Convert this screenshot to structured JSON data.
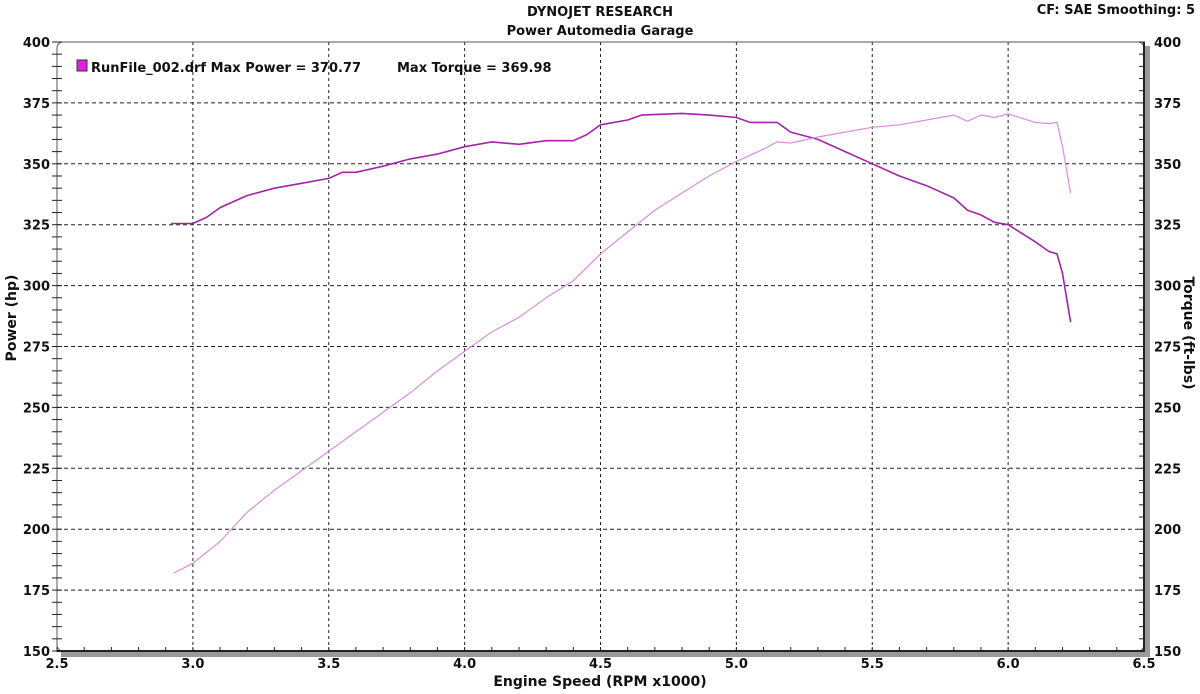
{
  "header": {
    "title": "DYNOJET RESEARCH",
    "subtitle": "Power Automedia Garage",
    "settings": "CF: SAE  Smoothing: 5"
  },
  "legend": {
    "run_label": "RunFile_002.drf Max Power = 370.77",
    "torque_label": "Max Torque = 369.98",
    "swatch_color": "#e020e0"
  },
  "chart_data": {
    "type": "line",
    "xlabel": "Engine Speed (RPM x1000)",
    "ylabel": "Power (hp)",
    "y2label": "Torque (ft-lbs)",
    "xlim": [
      2.5,
      6.5
    ],
    "ylim": [
      150,
      400
    ],
    "y2lim": [
      150,
      400
    ],
    "xticks": [
      "2.5",
      "3.0",
      "3.5",
      "4.0",
      "4.5",
      "5.0",
      "5.5",
      "6.0",
      "6.5"
    ],
    "yticks": [
      "150",
      "175",
      "200",
      "225",
      "250",
      "275",
      "300",
      "325",
      "350",
      "375",
      "400"
    ],
    "grid": true,
    "legend_position": "top-left",
    "series": [
      {
        "id": "power",
        "color": "#a424a8",
        "x": [
          2.92,
          3.0,
          3.05,
          3.1,
          3.2,
          3.3,
          3.4,
          3.5,
          3.55,
          3.6,
          3.7,
          3.8,
          3.9,
          4.0,
          4.1,
          4.2,
          4.3,
          4.4,
          4.45,
          4.5,
          4.6,
          4.65,
          4.8,
          4.9,
          5.0,
          5.05,
          5.15,
          5.2,
          5.3,
          5.4,
          5.5,
          5.6,
          5.7,
          5.8,
          5.85,
          5.9,
          5.95,
          6.0,
          6.1,
          6.15,
          6.18,
          6.2,
          6.23
        ],
        "y": [
          325.5,
          325.5,
          328,
          332,
          337,
          340,
          342,
          344,
          346.5,
          346.5,
          349,
          352,
          354,
          357,
          359,
          358,
          359.5,
          359.5,
          362,
          366,
          368,
          370,
          370.7,
          370,
          369,
          367,
          367,
          363,
          360,
          355,
          350,
          345,
          341,
          336,
          331,
          329,
          326,
          325,
          318,
          314,
          313,
          305,
          285
        ]
      },
      {
        "id": "torque",
        "color": "#d98ee0",
        "x": [
          2.93,
          3.0,
          3.1,
          3.2,
          3.3,
          3.4,
          3.5,
          3.6,
          3.7,
          3.8,
          3.9,
          4.0,
          4.1,
          4.2,
          4.3,
          4.4,
          4.5,
          4.6,
          4.7,
          4.8,
          4.9,
          5.0,
          5.1,
          5.15,
          5.2,
          5.3,
          5.4,
          5.5,
          5.6,
          5.7,
          5.8,
          5.85,
          5.9,
          5.95,
          6.0,
          6.1,
          6.15,
          6.18,
          6.2,
          6.23
        ],
        "y": [
          182,
          186,
          195,
          207,
          216,
          224,
          232,
          240,
          248,
          256,
          265,
          273,
          281,
          287,
          295,
          302,
          313,
          322,
          331,
          338,
          345,
          351,
          356,
          359,
          358.5,
          361,
          363,
          365,
          366,
          368,
          370,
          367.5,
          370,
          369,
          370.5,
          367,
          366.5,
          367,
          357,
          338
        ]
      }
    ]
  }
}
